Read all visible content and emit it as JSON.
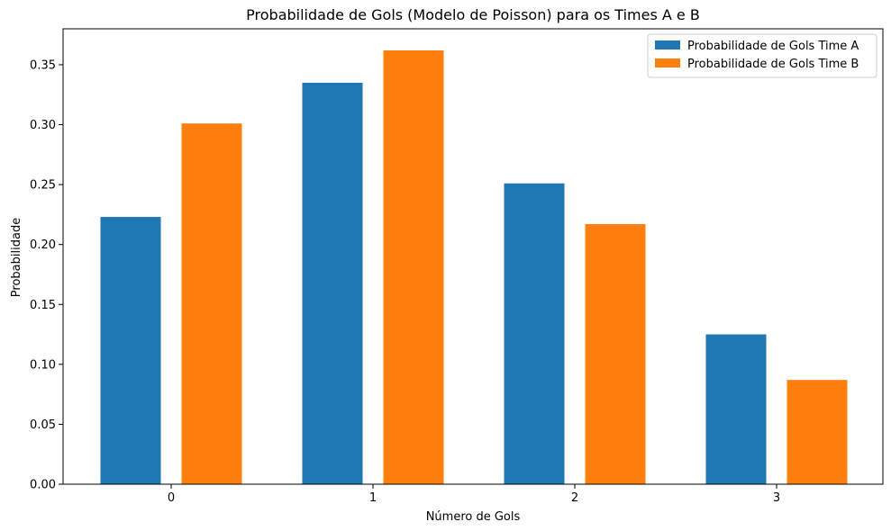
{
  "chart_data": {
    "type": "bar",
    "title": "Probabilidade de Gols (Modelo de Poisson) para os Times A e B",
    "xlabel": "Número de Gols",
    "ylabel": "Probabilidade",
    "categories": [
      "0",
      "1",
      "2",
      "3"
    ],
    "series": [
      {
        "name": "Probabilidade de Gols Time A",
        "color": "#1f77b4",
        "values": [
          0.223,
          0.335,
          0.251,
          0.125
        ]
      },
      {
        "name": "Probabilidade de Gols Time B",
        "color": "#ff7f0e",
        "values": [
          0.301,
          0.362,
          0.217,
          0.087
        ]
      }
    ],
    "ylim": [
      0,
      0.38
    ],
    "yticks": [
      "0.00",
      "0.05",
      "0.10",
      "0.15",
      "0.20",
      "0.25",
      "0.30",
      "0.35"
    ],
    "grid": false,
    "legend_position": "top-right"
  }
}
